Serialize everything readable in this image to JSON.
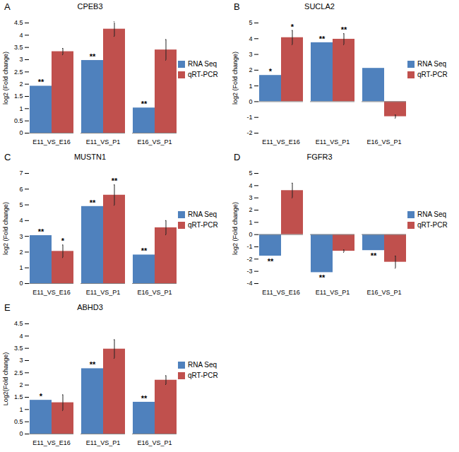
{
  "chart_data": [
    {
      "type": "bar",
      "panel": "A",
      "title": "CPEB3",
      "y_label": "log2 (Fold change)",
      "categories": [
        "E11_VS_E16",
        "E11_VS_P1",
        "E16_VS_P1"
      ],
      "ylim": [
        0,
        4.5
      ],
      "yticks": [
        0,
        0.5,
        1,
        1.5,
        2,
        2.5,
        3,
        3.5,
        4,
        4.5
      ],
      "series": [
        {
          "name": "RNA Seq",
          "color": "#4f81bd",
          "values": [
            1.92,
            2.97,
            1.03
          ],
          "significance": [
            "**",
            "**",
            "**"
          ]
        },
        {
          "name": "qRT-PCR",
          "color": "#c0504d",
          "values": [
            3.33,
            4.25,
            3.4
          ],
          "errors": [
            0.13,
            0.3,
            0.42
          ]
        }
      ]
    },
    {
      "type": "bar",
      "panel": "B",
      "title": "SUCLA2",
      "y_label": "log2 (Fold change)",
      "categories": [
        "E11_VS_E16",
        "E11_VS_P1",
        "E16_VS_P1"
      ],
      "ylim": [
        -2,
        5
      ],
      "yticks": [
        -2,
        -1,
        0,
        1,
        2,
        3,
        4,
        5
      ],
      "series": [
        {
          "name": "RNA Seq",
          "color": "#4f81bd",
          "values": [
            1.67,
            3.75,
            2.12
          ],
          "significance": [
            "*",
            "**",
            null
          ]
        },
        {
          "name": "qRT-PCR",
          "color": "#c0504d",
          "values": [
            4.07,
            3.97,
            -0.95
          ],
          "errors": [
            0.45,
            0.35,
            0.1
          ],
          "significance": [
            "*",
            "**",
            null
          ]
        }
      ]
    },
    {
      "type": "bar",
      "panel": "C",
      "title": "MUSTN1",
      "y_label": "log2 (Fold change)",
      "categories": [
        "E11_VS_E16",
        "E11_VS_P1",
        "E16_VS_P1"
      ],
      "ylim": [
        0,
        7
      ],
      "yticks": [
        0,
        1,
        2,
        3,
        4,
        5,
        6,
        7
      ],
      "series": [
        {
          "name": "RNA Seq",
          "color": "#4f81bd",
          "values": [
            3.05,
            4.9,
            1.82
          ],
          "significance": [
            "**",
            "**",
            "**"
          ]
        },
        {
          "name": "qRT-PCR",
          "color": "#c0504d",
          "values": [
            2.05,
            5.62,
            3.55
          ],
          "errors": [
            0.4,
            0.65,
            0.45
          ],
          "significance": [
            "*",
            "**",
            null
          ]
        }
      ]
    },
    {
      "type": "bar",
      "panel": "D",
      "title": "FGFR3",
      "y_label": "log2 (Fold change)",
      "categories": [
        "E11_VS_E16",
        "E11_VS_P1",
        "E16_VS_P1"
      ],
      "ylim": [
        -4,
        5
      ],
      "yticks": [
        -4,
        -3,
        -2,
        -1,
        0,
        1,
        2,
        3,
        4,
        5
      ],
      "series": [
        {
          "name": "RNA Seq",
          "color": "#4f81bd",
          "values": [
            -1.75,
            -3.1,
            -1.3
          ],
          "significance": [
            "**",
            "**",
            "**"
          ]
        },
        {
          "name": "qRT-PCR",
          "color": "#c0504d",
          "values": [
            3.6,
            -1.35,
            -2.25
          ],
          "errors": [
            0.6,
            0.1,
            0.5
          ]
        }
      ]
    },
    {
      "type": "bar",
      "panel": "E",
      "title": "ABHD3",
      "y_label": "Log2(Fold change)",
      "categories": [
        "E11_VS_E16",
        "E11_VS_P1",
        "E16_VS_P1"
      ],
      "ylim": [
        0,
        4.5
      ],
      "yticks": [
        0,
        0.5,
        1,
        1.5,
        2,
        2.5,
        3,
        3.5,
        4,
        4.5
      ],
      "series": [
        {
          "name": "RNA Seq",
          "color": "#4f81bd",
          "values": [
            1.38,
            2.67,
            1.3
          ],
          "significance": [
            "*",
            "**",
            "**"
          ]
        },
        {
          "name": "qRT-PCR",
          "color": "#c0504d",
          "values": [
            1.28,
            3.47,
            2.2
          ],
          "errors": [
            0.32,
            0.38,
            0.18
          ]
        }
      ]
    }
  ]
}
